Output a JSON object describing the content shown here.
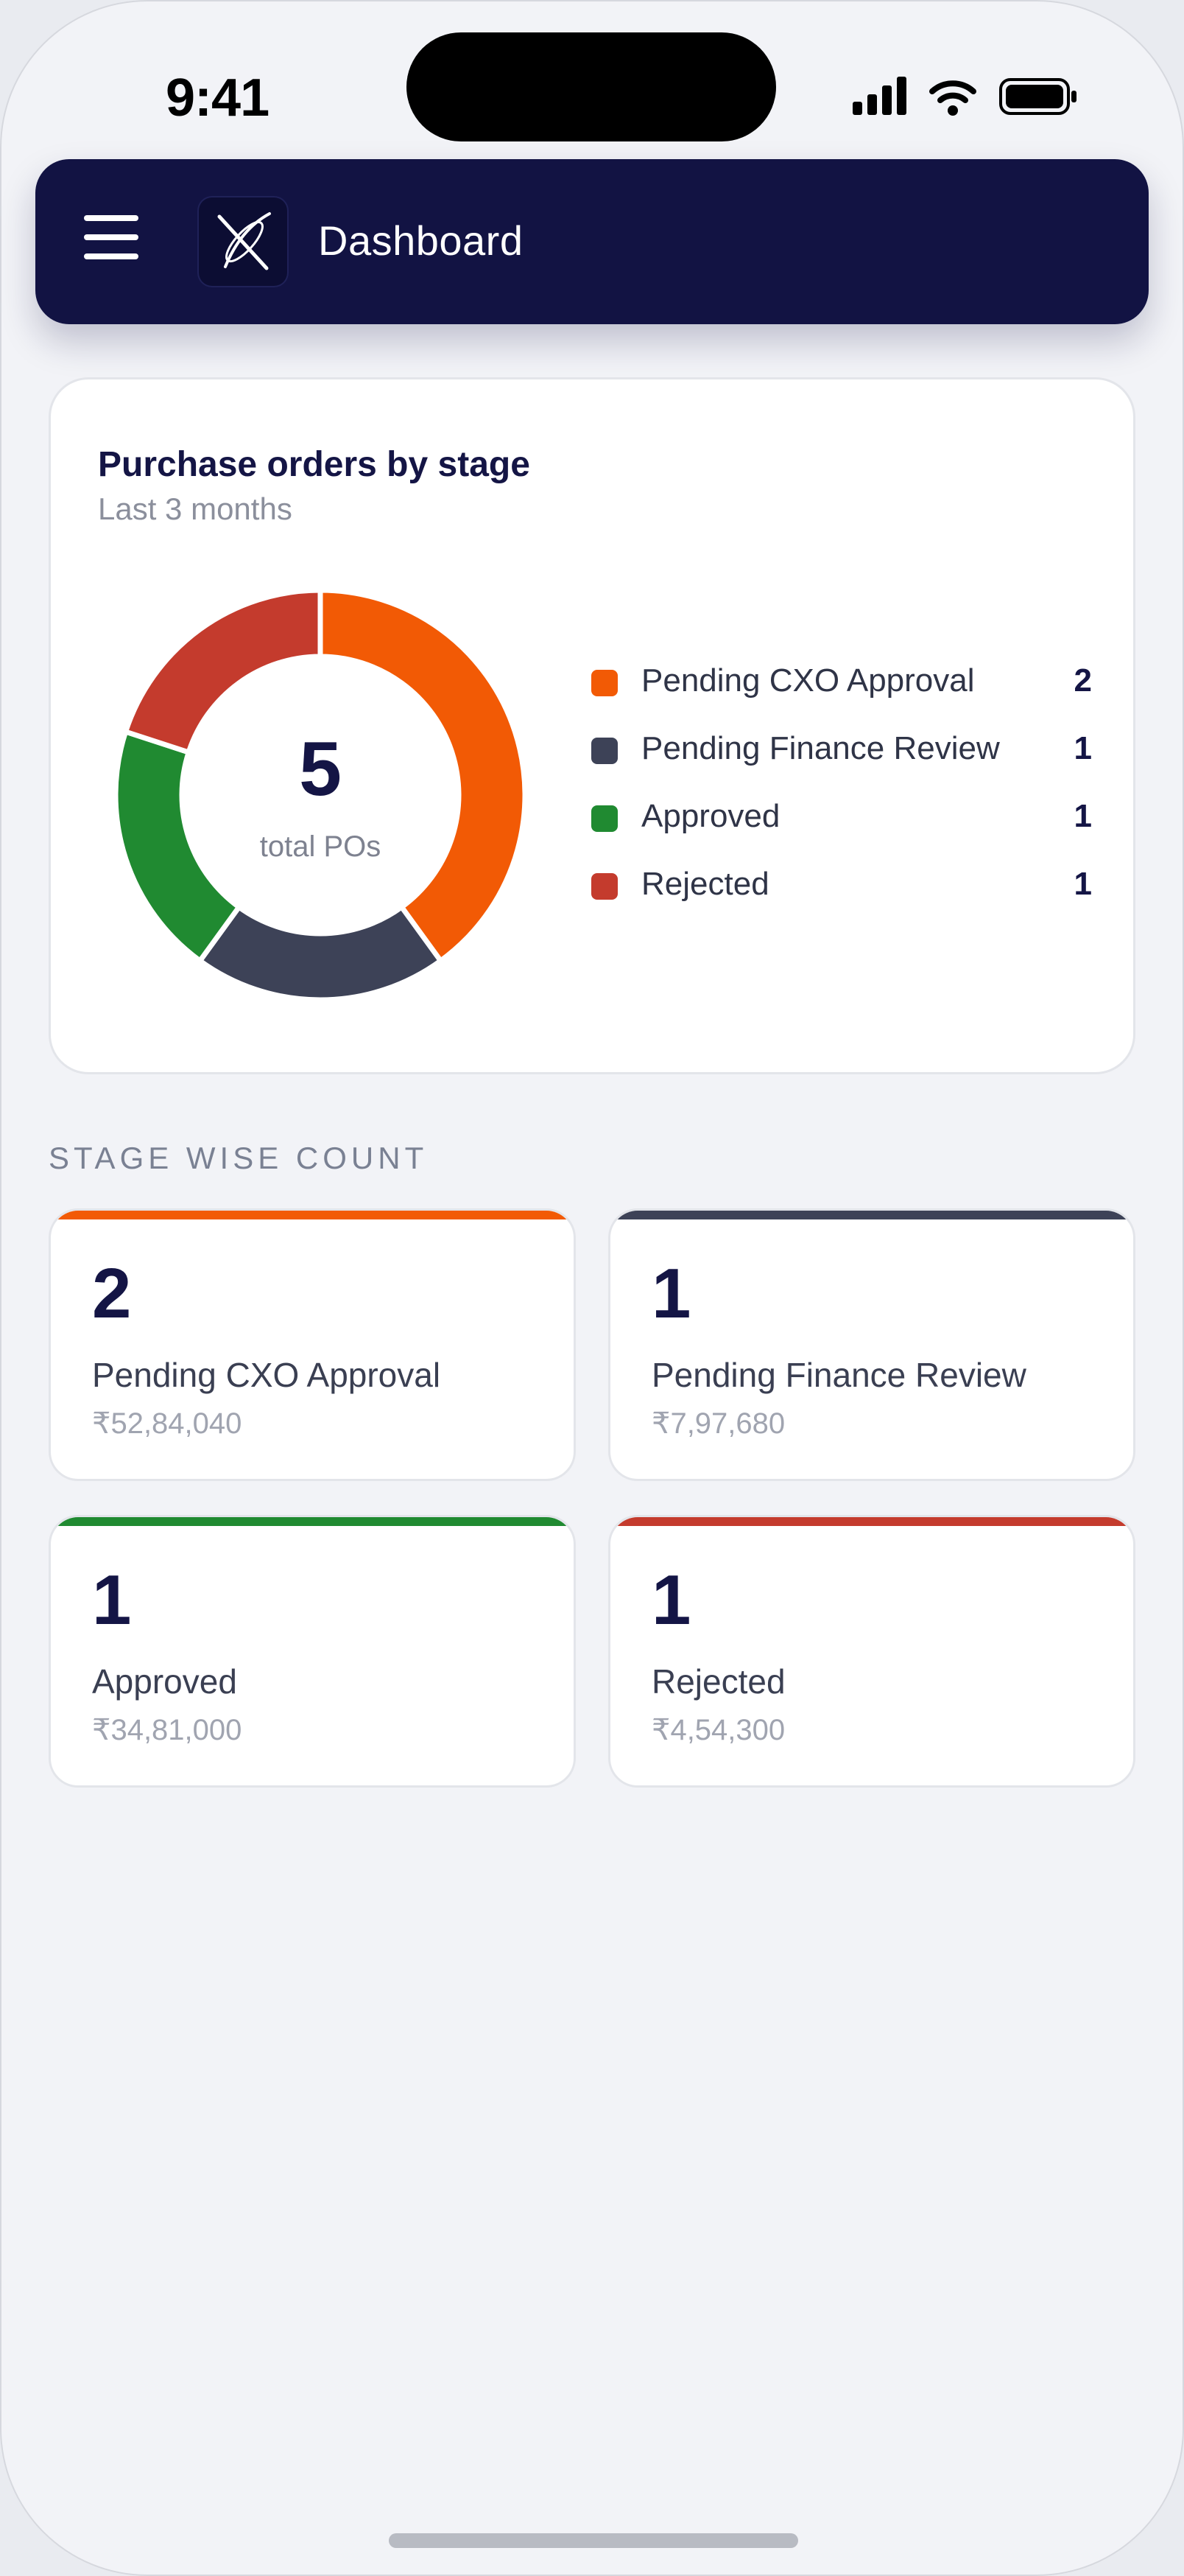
{
  "status_bar": {
    "time": "9:41",
    "icons": [
      "cellular-signal-icon",
      "wifi-icon",
      "battery-icon"
    ]
  },
  "header": {
    "title": "Dashboard",
    "menu_icon": "hamburger-menu-icon",
    "logo_icon": "app-logo-icon",
    "background": "#121343"
  },
  "chart_card": {
    "title": "Purchase orders by stage",
    "subtitle": "Last 3 months",
    "total_value": "5",
    "total_label": "total POs"
  },
  "chart_data": {
    "type": "pie",
    "title": "Purchase orders by stage",
    "subtitle": "Last 3 months",
    "categories": [
      "Pending CXO Approval",
      "Pending Finance Review",
      "Approved",
      "Rejected"
    ],
    "values": [
      2,
      1,
      1,
      1
    ],
    "colors": [
      "#f25a05",
      "#3d4257",
      "#208a31",
      "#c43b2d"
    ],
    "donut": true,
    "center_value": 5,
    "center_label": "total POs",
    "legend_position": "right"
  },
  "legend": [
    {
      "label": "Pending CXO Approval",
      "value": "2",
      "color": "#f25a05"
    },
    {
      "label": "Pending Finance Review",
      "value": "1",
      "color": "#3d4257"
    },
    {
      "label": "Approved",
      "value": "1",
      "color": "#208a31"
    },
    {
      "label": "Rejected",
      "value": "1",
      "color": "#c43b2d"
    }
  ],
  "stage_section": {
    "heading": "STAGE WISE COUNT",
    "cards": [
      {
        "count": "2",
        "label": "Pending CXO Approval",
        "amount": "₹52,84,040",
        "color": "#f25a05"
      },
      {
        "count": "1",
        "label": "Pending Finance Review",
        "amount": "₹7,97,680",
        "color": "#3d4257"
      },
      {
        "count": "1",
        "label": "Approved",
        "amount": "₹34,81,000",
        "color": "#208a31"
      },
      {
        "count": "1",
        "label": "Rejected",
        "amount": "₹4,54,300",
        "color": "#c43b2d"
      }
    ]
  }
}
